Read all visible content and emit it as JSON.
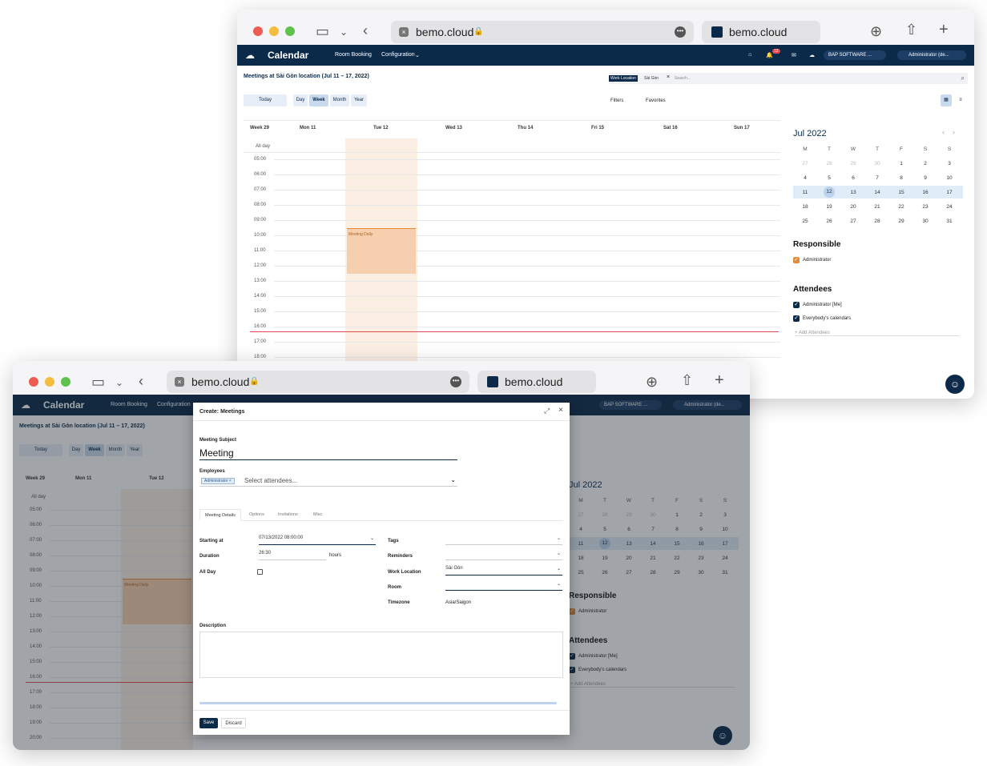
{
  "browser": {
    "url": "bemo.cloud",
    "tab_title": "bemo.cloud"
  },
  "app": {
    "title": "Calendar",
    "menu": [
      "Room Booking",
      "Configuration"
    ],
    "notif_count": "12",
    "company": "BAP SOFTWARE ...",
    "user": "Administrator (de...",
    "user2": "Administrator (de..."
  },
  "calendar": {
    "heading": "Meetings at Sài Gòn location (Jul 11 – 17, 2022)",
    "facet_label": "Work Location",
    "facet_value": "Sài Gòn",
    "search_placeholder": "Search...",
    "today": "Today",
    "views": [
      "Day",
      "Week",
      "Month",
      "Year"
    ],
    "filters": "Filters",
    "favorites": "Favorites",
    "week_label": "Week 29",
    "days": [
      "Mon 11",
      "Tue 12",
      "Wed 13",
      "Thu 14",
      "Fri 15",
      "Sat 16",
      "Sun 17"
    ],
    "allday": "All day",
    "times_top": [
      "05:00",
      "06:00",
      "07:00",
      "08:00",
      "09:00",
      "10:00",
      "11:00",
      "12:00",
      "13:00",
      "14:00",
      "15:00",
      "16:00",
      "17:00",
      "18:00"
    ],
    "times_bottom": [
      "05:00",
      "06:00",
      "07:00",
      "08:00",
      "09:00",
      "10:00",
      "11:00",
      "12:00",
      "13:00",
      "14:00",
      "15:00",
      "16:00",
      "17:00",
      "18:00",
      "19:00",
      "20:00"
    ],
    "event": "Meeting Daily"
  },
  "mini_calendar": {
    "month": "Jul 2022",
    "weekdays": [
      "M",
      "T",
      "W",
      "T",
      "F",
      "S",
      "S"
    ],
    "weeks": [
      [
        "27",
        "28",
        "29",
        "30",
        "1",
        "2",
        "3"
      ],
      [
        "4",
        "5",
        "6",
        "7",
        "8",
        "9",
        "10"
      ],
      [
        "11",
        "12",
        "13",
        "14",
        "15",
        "16",
        "17"
      ],
      [
        "18",
        "19",
        "20",
        "21",
        "22",
        "23",
        "24"
      ],
      [
        "25",
        "26",
        "27",
        "28",
        "29",
        "30",
        "31"
      ]
    ]
  },
  "sidebar": {
    "responsible_title": "Responsible",
    "responsible": "Administrator",
    "attendees_title": "Attendees",
    "attendee_me": "Administrator [Me]",
    "attendee_all": "Everybody's calendars",
    "add_attendees": "+ Add Attendees"
  },
  "dialog": {
    "title": "Create: Meetings",
    "subject_label": "Meeting Subject",
    "subject_value": "Meeting",
    "employees_label": "Employees",
    "employee_tag": "Administrator",
    "attendees_placeholder": "Select attendees...",
    "tabs": [
      "Meeting Details",
      "Options",
      "Invitations",
      "Misc"
    ],
    "starting_label": "Starting at",
    "starting_value": "07/13/2022 08:00:00",
    "duration_label": "Duration",
    "duration_value": "26:30",
    "duration_unit": "hours",
    "allday_label": "All Day",
    "tags_label": "Tags",
    "reminders_label": "Reminders",
    "worklocation_label": "Work Location",
    "worklocation_value": "Sài Gòn",
    "room_label": "Room",
    "timezone_label": "Timezone",
    "timezone_value": "Asia/Saigon",
    "description_label": "Description",
    "save": "Save",
    "discard": "Discard"
  },
  "colors": {
    "navy": "#0b2a4a",
    "event": "#f6cfae",
    "accent": "#e58a3c",
    "today": "#e0ecf8"
  }
}
